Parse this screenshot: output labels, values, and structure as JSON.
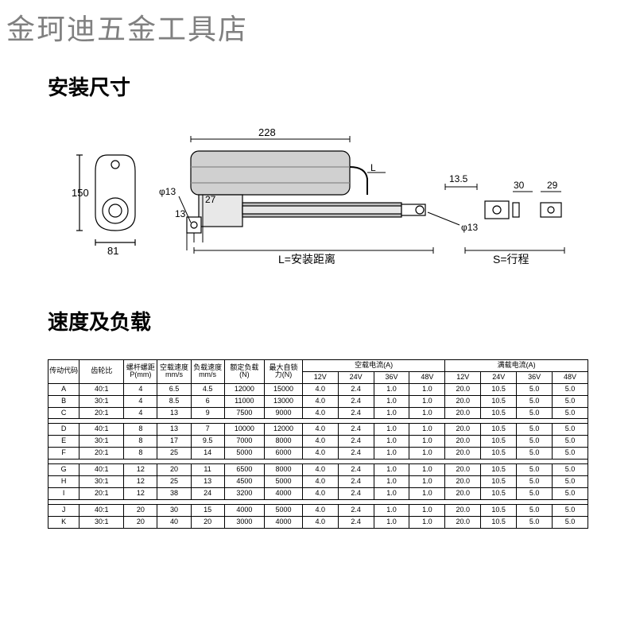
{
  "watermark": "金珂迪五金工具店",
  "section1_title": "安装尺寸",
  "section2_title": "速度及负载",
  "diagram": {
    "motor_length": "228",
    "motor_height": "150",
    "motor_width": "81",
    "hole_dia_left": "φ13",
    "offset_27": "27",
    "offset_13": "13",
    "bracket_13_5": "13.5",
    "bracket_30": "30",
    "bracket_29": "29",
    "hole_dia_right": "φ13",
    "label_L_tag": "L",
    "label_L": "L=安装距离",
    "label_S": "S=行程"
  },
  "table": {
    "headers": {
      "code": "传动代码",
      "ratio": "齿轮比",
      "pitch": "螺杆螺距P(mm)",
      "noload_speed": "空载速度mm/s",
      "load_speed": "负载速度mm/s",
      "rated_load": "额定负载(N)",
      "max_lock": "最大自锁力(N)",
      "noload_current": "空载电流(A)",
      "fullload_current": "满载电流(A)",
      "v12": "12V",
      "v24": "24V",
      "v36": "36V",
      "v48": "48V"
    },
    "groups": [
      [
        {
          "code": "A",
          "ratio": "40:1",
          "pitch": "4",
          "nls": "6.5",
          "ls": "4.5",
          "rl": "12000",
          "ml": "15000",
          "n12": "4.0",
          "n24": "2.4",
          "n36": "1.0",
          "n48": "1.0",
          "f12": "20.0",
          "f24": "10.5",
          "f36": "5.0",
          "f48": "5.0"
        },
        {
          "code": "B",
          "ratio": "30:1",
          "pitch": "4",
          "nls": "8.5",
          "ls": "6",
          "rl": "11000",
          "ml": "13000",
          "n12": "4.0",
          "n24": "2.4",
          "n36": "1.0",
          "n48": "1.0",
          "f12": "20.0",
          "f24": "10.5",
          "f36": "5.0",
          "f48": "5.0"
        },
        {
          "code": "C",
          "ratio": "20:1",
          "pitch": "4",
          "nls": "13",
          "ls": "9",
          "rl": "7500",
          "ml": "9000",
          "n12": "4.0",
          "n24": "2.4",
          "n36": "1.0",
          "n48": "1.0",
          "f12": "20.0",
          "f24": "10.5",
          "f36": "5.0",
          "f48": "5.0"
        }
      ],
      [
        {
          "code": "D",
          "ratio": "40:1",
          "pitch": "8",
          "nls": "13",
          "ls": "7",
          "rl": "10000",
          "ml": "12000",
          "n12": "4.0",
          "n24": "2.4",
          "n36": "1.0",
          "n48": "1.0",
          "f12": "20.0",
          "f24": "10.5",
          "f36": "5.0",
          "f48": "5.0"
        },
        {
          "code": "E",
          "ratio": "30:1",
          "pitch": "8",
          "nls": "17",
          "ls": "9.5",
          "rl": "7000",
          "ml": "8000",
          "n12": "4.0",
          "n24": "2.4",
          "n36": "1.0",
          "n48": "1.0",
          "f12": "20.0",
          "f24": "10.5",
          "f36": "5.0",
          "f48": "5.0"
        },
        {
          "code": "F",
          "ratio": "20:1",
          "pitch": "8",
          "nls": "25",
          "ls": "14",
          "rl": "5000",
          "ml": "6000",
          "n12": "4.0",
          "n24": "2.4",
          "n36": "1.0",
          "n48": "1.0",
          "f12": "20.0",
          "f24": "10.5",
          "f36": "5.0",
          "f48": "5.0"
        }
      ],
      [
        {
          "code": "G",
          "ratio": "40:1",
          "pitch": "12",
          "nls": "20",
          "ls": "11",
          "rl": "6500",
          "ml": "8000",
          "n12": "4.0",
          "n24": "2.4",
          "n36": "1.0",
          "n48": "1.0",
          "f12": "20.0",
          "f24": "10.5",
          "f36": "5.0",
          "f48": "5.0"
        },
        {
          "code": "H",
          "ratio": "30:1",
          "pitch": "12",
          "nls": "25",
          "ls": "13",
          "rl": "4500",
          "ml": "5000",
          "n12": "4.0",
          "n24": "2.4",
          "n36": "1.0",
          "n48": "1.0",
          "f12": "20.0",
          "f24": "10.5",
          "f36": "5.0",
          "f48": "5.0"
        },
        {
          "code": "I",
          "ratio": "20:1",
          "pitch": "12",
          "nls": "38",
          "ls": "24",
          "rl": "3200",
          "ml": "4000",
          "n12": "4.0",
          "n24": "2.4",
          "n36": "1.0",
          "n48": "1.0",
          "f12": "20.0",
          "f24": "10.5",
          "f36": "5.0",
          "f48": "5.0"
        }
      ],
      [
        {
          "code": "J",
          "ratio": "40:1",
          "pitch": "20",
          "nls": "30",
          "ls": "15",
          "rl": "4000",
          "ml": "5000",
          "n12": "4.0",
          "n24": "2.4",
          "n36": "1.0",
          "n48": "1.0",
          "f12": "20.0",
          "f24": "10.5",
          "f36": "5.0",
          "f48": "5.0"
        },
        {
          "code": "K",
          "ratio": "30:1",
          "pitch": "20",
          "nls": "40",
          "ls": "20",
          "rl": "3000",
          "ml": "4000",
          "n12": "4.0",
          "n24": "2.4",
          "n36": "1.0",
          "n48": "1.0",
          "f12": "20.0",
          "f24": "10.5",
          "f36": "5.0",
          "f48": "5.0"
        }
      ]
    ]
  }
}
